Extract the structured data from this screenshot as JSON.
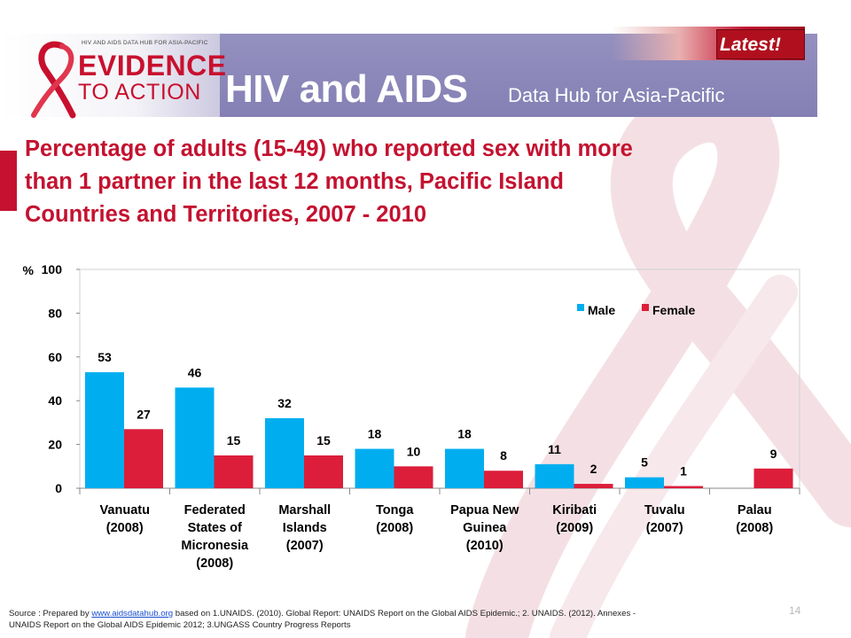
{
  "header": {
    "logo_small": "HIV AND AIDS DATA HUB FOR ASIA-PACIFIC",
    "logo_evidence": "EVIDENCE",
    "logo_action": "TO ACTION",
    "title": "HIV and AIDS",
    "subtitle": "Data Hub for Asia-Pacific",
    "badge": "Latest!"
  },
  "slide_title": {
    "line1": "Percentage of adults (15-49) who reported sex with more",
    "line2": "than 1 partner in the last 12 months, Pacific Island",
    "line3": "Countries and Territories,  2007 - 2010"
  },
  "chart_data": {
    "type": "bar",
    "ylabel": "%",
    "ylim": [
      0,
      100
    ],
    "yticks": [
      0,
      20,
      40,
      60,
      80,
      100
    ],
    "grid": false,
    "legend_position": "top-right",
    "categories": [
      [
        "Vanuatu",
        "(2008)"
      ],
      [
        "Federated",
        "States of",
        "Micronesia",
        "(2008)"
      ],
      [
        "Marshall",
        "Islands",
        "(2007)"
      ],
      [
        "Tonga",
        "(2008)"
      ],
      [
        "Papua New",
        "Guinea",
        "(2010)"
      ],
      [
        "Kiribati",
        "(2009)"
      ],
      [
        "Tuvalu",
        "(2007)"
      ],
      [
        "Palau",
        "(2008)"
      ]
    ],
    "series": [
      {
        "name": "Male",
        "color": "#00aeef",
        "values": [
          53,
          46,
          32,
          18,
          18,
          11,
          5,
          null
        ]
      },
      {
        "name": "Female",
        "color": "#dc1e3a",
        "values": [
          27,
          15,
          15,
          10,
          8,
          2,
          1,
          9
        ]
      }
    ]
  },
  "footer": {
    "source_prefix": "Source : Prepared by ",
    "source_link": "www.aidsdatahub.org",
    "source_rest": " based on 1.UNAIDS. (2010). Global Report: UNAIDS Report on the Global AIDS Epidemic.; 2. UNAIDS. (2012). Annexes -",
    "source_line2": "UNAIDS Report on the Global AIDS Epidemic 2012; 3.UNGASS Country Progress Reports",
    "page_number": "14"
  }
}
